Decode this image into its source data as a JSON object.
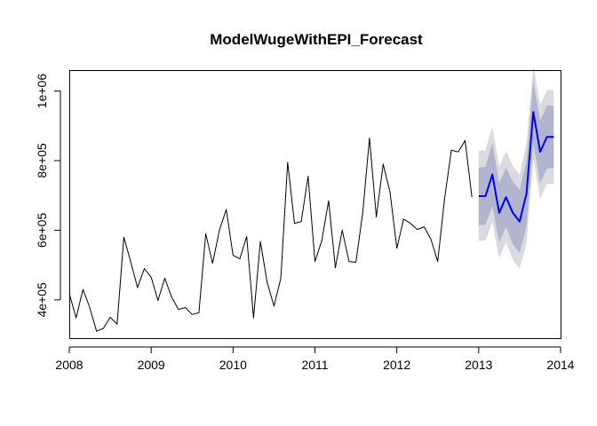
{
  "chart_data": {
    "type": "line",
    "title": "ModelWugeWithEPI_Forecast",
    "xlabel": "",
    "ylabel": "",
    "xlim": [
      2008,
      2014
    ],
    "ylim": [
      290000,
      1060000
    ],
    "x_ticks": [
      2008,
      2009,
      2010,
      2011,
      2012,
      2013,
      2014
    ],
    "x_tick_labels": [
      "2008",
      "2009",
      "2010",
      "2011",
      "2012",
      "2013",
      "2014"
    ],
    "y_ticks": [
      400000,
      600000,
      800000,
      1000000
    ],
    "y_tick_labels": [
      "4e+05",
      "6e+05",
      "8e+05",
      "1e+06"
    ],
    "grid": false,
    "legend": "none",
    "colors": {
      "history": "#000000",
      "forecast": "#0000ff",
      "band_80": "#b1b5ce",
      "band_95": "#dbdbdf"
    },
    "series": [
      {
        "role": "history",
        "x_start": 2008,
        "x_step": 0.083333,
        "values": [
          418000,
          348000,
          430000,
          378000,
          310000,
          318000,
          350000,
          330000,
          580000,
          510000,
          435000,
          490000,
          465000,
          398000,
          462000,
          408000,
          372000,
          378000,
          358000,
          363000,
          590000,
          505000,
          600000,
          660000,
          528000,
          518000,
          582000,
          348000,
          568000,
          450000,
          382000,
          462000,
          795000,
          620000,
          625000,
          755000,
          510000,
          570000,
          685000,
          492000,
          600000,
          510000,
          508000,
          650000,
          865000,
          638000,
          790000,
          710000,
          548000,
          632000,
          620000,
          602000,
          610000,
          574000,
          510000,
          690000,
          830000,
          825000,
          858000,
          695000
        ]
      },
      {
        "role": "forecast",
        "x_start": 2013,
        "x_step": 0.083333,
        "values": [
          698000,
          698000,
          760000,
          650000,
          695000,
          650000,
          625000,
          705000,
          940000,
          825000,
          868000,
          868000
        ],
        "lo80": [
          615000,
          615000,
          670000,
          565000,
          610000,
          560000,
          535000,
          610000,
          850000,
          735000,
          778000,
          778000
        ],
        "hi80": [
          780000,
          782000,
          850000,
          735000,
          780000,
          740000,
          715000,
          800000,
          1030000,
          915000,
          958000,
          958000
        ],
        "lo95": [
          570000,
          570000,
          625000,
          520000,
          565000,
          515000,
          490000,
          560000,
          805000,
          690000,
          733000,
          733000
        ],
        "hi95": [
          828000,
          830000,
          898000,
          783000,
          828000,
          785000,
          760000,
          850000,
          1075000,
          960000,
          1003000,
          1003000
        ]
      }
    ]
  }
}
